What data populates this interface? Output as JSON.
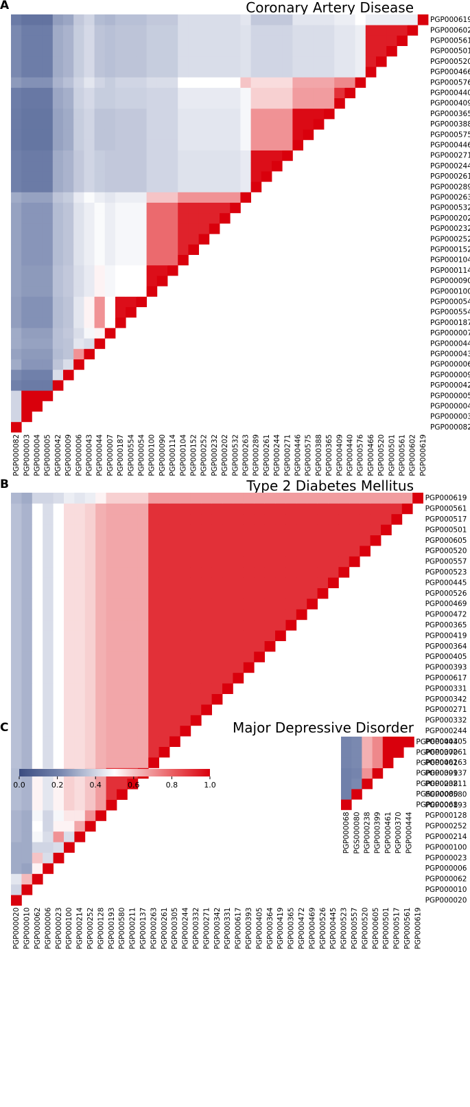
{
  "panels": [
    {
      "letter": "A",
      "title": "Coronary Artery Disease",
      "chart_data": {
        "type": "heatmap",
        "title": "Coronary Artery Disease",
        "colorbar_range": [
          0.0,
          1.0
        ],
        "x_labels": [
          "PGP000082",
          "PGP000003",
          "PGP000004",
          "PGP000005",
          "PGP000042",
          "PGP000009",
          "PGP000006",
          "PGP000043",
          "PGP000044",
          "PGP000007",
          "PGP000187",
          "PGP000554",
          "PGP000054",
          "PGP000100",
          "PGP000090",
          "PGP000114",
          "PGP000104",
          "PGP000152",
          "PGP000252",
          "PGP000232",
          "PGP000202",
          "PGP000532",
          "PGP000263",
          "PGP000289",
          "PGP000261",
          "PGP000244",
          "PGP000271",
          "PGP000446",
          "PGP000575",
          "PGP000388",
          "PGP000365",
          "PGP000409",
          "PGP000440",
          "PGP000576",
          "PGP000466",
          "PGP000520",
          "PGP000501",
          "PGP000561",
          "PGP000602",
          "PGP000619"
        ],
        "y_labels": [
          "PGP000619",
          "PGP000602",
          "PGP000561",
          "PGP000501",
          "PGP000520",
          "PGP000466",
          "PGP000576",
          "PGP000440",
          "PGP000409",
          "PGP000365",
          "PGP000388",
          "PGP000575",
          "PGP000446",
          "PGP000271",
          "PGP000244",
          "PGP000261",
          "PGP000289",
          "PGP000263",
          "PGP000532",
          "PGP000202",
          "PGP000232",
          "PGP000252",
          "PGP000152",
          "PGP000104",
          "PGP000114",
          "PGP000090",
          "PGP000100",
          "PGP000054",
          "PGP000554",
          "PGP000187",
          "PGP000007",
          "PGP000044",
          "PGP000043",
          "PGP000006",
          "PGP000009",
          "PGP000042",
          "PGP000005",
          "PGP000004",
          "PGP000003",
          "PGP000082"
        ],
        "groups": [
          {
            "labels": [
              "PGP000082"
            ],
            "intra": 0.42
          },
          {
            "labels": [
              "PGP000003",
              "PGP000004",
              "PGP000005"
            ],
            "intra": 1.0
          },
          {
            "labels": [
              "PGP000042"
            ],
            "intra": 0.42
          },
          {
            "labels": [
              "PGP000009"
            ],
            "intra": 0.42
          },
          {
            "labels": [
              "PGP000006"
            ],
            "intra": 0.42
          },
          {
            "labels": [
              "PGP000043"
            ],
            "intra": 0.62
          },
          {
            "labels": [
              "PGP000044"
            ],
            "intra": 0.42
          },
          {
            "labels": [
              "PGP000007"
            ],
            "intra": 0.42
          },
          {
            "labels": [
              "PGP000187",
              "PGP000554",
              "PGP000054"
            ],
            "intra": 0.97
          },
          {
            "labels": [
              "PGP000100",
              "PGP000090",
              "PGP000114"
            ],
            "intra": 0.97
          },
          {
            "labels": [
              "PGP000104",
              "PGP000152",
              "PGP000252",
              "PGP000232",
              "PGP000202",
              "PGP000532"
            ],
            "intra": 0.93
          },
          {
            "labels": [
              "PGP000263"
            ],
            "intra": 0.42
          },
          {
            "labels": [
              "PGP000289",
              "PGP000261",
              "PGP000244",
              "PGP000271"
            ],
            "intra": 0.97
          },
          {
            "labels": [
              "PGP000446",
              "PGP000575",
              "PGP000388",
              "PGP000365"
            ],
            "intra": 0.98
          },
          {
            "labels": [
              "PGP000409",
              "PGP000440"
            ],
            "intra": 0.9
          },
          {
            "labels": [
              "PGP000576"
            ],
            "intra": 0.42
          },
          {
            "labels": [
              "PGP000466",
              "PGP000520",
              "PGP000501",
              "PGP000561",
              "PGP000602"
            ],
            "intra": 0.94
          },
          {
            "labels": [
              "PGP000619"
            ],
            "intra": 0.42
          }
        ],
        "block_values": [
          [],
          [
            0.4
          ],
          [
            0.2,
            0.18
          ],
          [
            0.22,
            0.2,
            0.42
          ],
          [
            0.3,
            0.25,
            0.36,
            0.42
          ],
          [
            0.28,
            0.26,
            0.34,
            0.36,
            0.7
          ],
          [
            0.3,
            0.28,
            0.35,
            0.36,
            0.44,
            0.42
          ],
          [
            0.3,
            0.27,
            0.35,
            0.37,
            0.42,
            0.48,
            0.52
          ],
          [
            0.27,
            0.24,
            0.34,
            0.36,
            0.44,
            0.52,
            0.7,
            0.5
          ],
          [
            0.28,
            0.26,
            0.35,
            0.37,
            0.42,
            0.45,
            0.52,
            0.48,
            0.5
          ],
          [
            0.28,
            0.25,
            0.34,
            0.36,
            0.43,
            0.46,
            0.49,
            0.46,
            0.48,
            0.78
          ],
          [
            0.3,
            0.28,
            0.36,
            0.38,
            0.45,
            0.49,
            0.46,
            0.44,
            0.46,
            0.6,
            0.7
          ],
          [
            0.2,
            0.18,
            0.3,
            0.32,
            0.37,
            0.4,
            0.38,
            0.37,
            0.37,
            0.4,
            0.43,
            0.45
          ],
          [
            0.18,
            0.16,
            0.28,
            0.3,
            0.38,
            0.4,
            0.36,
            0.36,
            0.37,
            0.4,
            0.44,
            0.48,
            0.7
          ],
          [
            0.19,
            0.17,
            0.29,
            0.31,
            0.39,
            0.41,
            0.38,
            0.38,
            0.39,
            0.4,
            0.45,
            0.48,
            0.58,
            0.68
          ],
          [
            0.26,
            0.24,
            0.32,
            0.35,
            0.4,
            0.44,
            0.4,
            0.38,
            0.4,
            0.42,
            0.5,
            0.6,
            0.56,
            0.66,
            0.72
          ],
          [
            0.22,
            0.19,
            0.3,
            0.32,
            0.38,
            0.41,
            0.36,
            0.35,
            0.36,
            0.38,
            0.42,
            0.43,
            0.4,
            0.42,
            0.44,
            0.46
          ],
          [
            0.18,
            0.15,
            0.27,
            0.29,
            0.37,
            0.4,
            0.34,
            0.33,
            0.35,
            0.37,
            0.42,
            0.44,
            0.37,
            0.44,
            0.46,
            0.5,
            0.46
          ],
          [
            0.2,
            0.18,
            0.3,
            0.32,
            0.39,
            0.42,
            0.37,
            0.36,
            0.37,
            0.38,
            0.44,
            0.47,
            0.4,
            0.47,
            0.5,
            0.6,
            0.55,
            0.46
          ]
        ]
      }
    },
    {
      "letter": "B",
      "title": "Type 2 Diabetes Mellitus",
      "chart_data": {
        "type": "heatmap",
        "title": "Type 2 Diabetes Mellitus",
        "colorbar_range": [
          0.0,
          1.0
        ],
        "x_labels": [
          "PGP000020",
          "PGP000010",
          "PGP000062",
          "PGP000006",
          "PGP000023",
          "PGP000100",
          "PGP000214",
          "PGP000252",
          "PGP000128",
          "PGP000193",
          "PGP000580",
          "PGP000211",
          "PGP000137",
          "PGP000263",
          "PGP000261",
          "PGP000305",
          "PGP000244",
          "PGP000332",
          "PGP000271",
          "PGP000342",
          "PGP000331",
          "PGP000617",
          "PGP000393",
          "PGP000405",
          "PGP000364",
          "PGP000419",
          "PGP000365",
          "PGP000472",
          "PGP000469",
          "PGP000526",
          "PGP000445",
          "PGP000523",
          "PGP000557",
          "PGP000520",
          "PGP000605",
          "PGP000501",
          "PGP000517",
          "PGP000561",
          "PGP000619"
        ],
        "y_labels": [
          "PGP000619",
          "PGP000561",
          "PGP000517",
          "PGP000501",
          "PGP000605",
          "PGP000520",
          "PGP000557",
          "PGP000523",
          "PGP000445",
          "PGP000526",
          "PGP000469",
          "PGP000472",
          "PGP000365",
          "PGP000419",
          "PGP000364",
          "PGP000405",
          "PGP000393",
          "PGP000617",
          "PGP000331",
          "PGP000342",
          "PGP000271",
          "PGP000332",
          "PGP000244",
          "PGP000305",
          "PGP000261",
          "PGP000263",
          "PGP000137",
          "PGP000211",
          "PGP000580",
          "PGP000193",
          "PGP000128",
          "PGP000252",
          "PGP000214",
          "PGP000100",
          "PGP000023",
          "PGP000006",
          "PGP000062",
          "PGP000010",
          "PGP000020"
        ],
        "groups": [
          {
            "labels": [
              "PGP000020"
            ],
            "intra": 0.42
          },
          {
            "labels": [
              "PGP000010"
            ],
            "intra": 0.88
          },
          {
            "labels": [
              "PGP000062"
            ],
            "intra": 0.42
          },
          {
            "labels": [
              "PGP000006"
            ],
            "intra": 0.42
          },
          {
            "labels": [
              "PGP000023"
            ],
            "intra": 0.42
          },
          {
            "labels": [
              "PGP000100"
            ],
            "intra": 0.42
          },
          {
            "labels": [
              "PGP000214"
            ],
            "intra": 0.42
          },
          {
            "labels": [
              "PGP000252"
            ],
            "intra": 0.42
          },
          {
            "labels": [
              "PGP000128"
            ],
            "intra": 0.42
          },
          {
            "labels": [
              "PGP000193",
              "PGP000580",
              "PGP000211",
              "PGP000137"
            ],
            "intra": 0.9
          },
          {
            "labels": [
              "PGP000263",
              "PGP000261",
              "PGP000305",
              "PGP000244",
              "PGP000332",
              "PGP000271",
              "PGP000342",
              "PGP000331",
              "PGP000617",
              "PGP000393",
              "PGP000405",
              "PGP000364",
              "PGP000419",
              "PGP000365",
              "PGP000472",
              "PGP000469",
              "PGP000526",
              "PGP000445",
              "PGP000523",
              "PGP000557",
              "PGP000520",
              "PGP000605",
              "PGP000501",
              "PGP000517",
              "PGP000561"
            ],
            "intra": 0.9
          },
          {
            "labels": [
              "PGP000619"
            ],
            "intra": 0.42
          }
        ],
        "block_values": [
          [],
          [
            0.4
          ],
          [
            0.44,
            0.62
          ],
          [
            0.3,
            0.28,
            0.52
          ],
          [
            0.3,
            0.3,
            0.6,
            0.42
          ],
          [
            0.3,
            0.3,
            0.4,
            0.4,
            0.42
          ],
          [
            0.32,
            0.3,
            0.48,
            0.42,
            0.7,
            0.42
          ],
          [
            0.32,
            0.3,
            0.5,
            0.4,
            0.52,
            0.52,
            0.66
          ],
          [
            0.32,
            0.3,
            0.48,
            0.4,
            0.48,
            0.54,
            0.54,
            0.7
          ],
          [
            0.34,
            0.32,
            0.52,
            0.44,
            0.52,
            0.58,
            0.56,
            0.6,
            0.68
          ],
          [
            0.35,
            0.32,
            0.5,
            0.42,
            0.5,
            0.56,
            0.56,
            0.58,
            0.64,
            0.66
          ],
          [
            0.33,
            0.3,
            0.4,
            0.4,
            0.42,
            0.46,
            0.44,
            0.46,
            0.52,
            0.58,
            0.68
          ]
        ]
      }
    },
    {
      "letter": "C",
      "title": "Major Depressive Disorder",
      "chart_data": {
        "type": "heatmap",
        "title": "Major Depressive Disorder",
        "colorbar_range": [
          0.0,
          1.0
        ],
        "x_labels": [
          "PGP000068",
          "PGS000080",
          "PGP000238",
          "PGP000399",
          "PGP000461",
          "PGP000370",
          "PGP000444"
        ],
        "y_labels": [
          "PGP000444",
          "PGP000370",
          "PGP000461",
          "PGP000399",
          "PGP000238",
          "PGS000080",
          "PGP000068"
        ],
        "groups": [
          {
            "labels": [
              "PGP000068"
            ],
            "intra": 0.42
          },
          {
            "labels": [
              "PGS000080"
            ],
            "intra": 0.42
          },
          {
            "labels": [
              "PGP000238"
            ],
            "intra": 0.42
          },
          {
            "labels": [
              "PGP000399"
            ],
            "intra": 0.42
          },
          {
            "labels": [
              "PGP000461",
              "PGP000370",
              "PGP000444"
            ],
            "intra": 1.0
          }
        ],
        "block_values": [
          [],
          [
            0.2
          ],
          [
            0.2,
            0.22
          ],
          [
            0.2,
            0.21,
            0.7
          ],
          [
            0.21,
            0.22,
            0.64,
            0.72
          ]
        ]
      }
    }
  ],
  "colorbar": {
    "ticks": [
      "0.0",
      "0.2",
      "0.4",
      "0.6",
      "0.8",
      "1.0"
    ],
    "min": 0.0,
    "max": 1.0
  }
}
